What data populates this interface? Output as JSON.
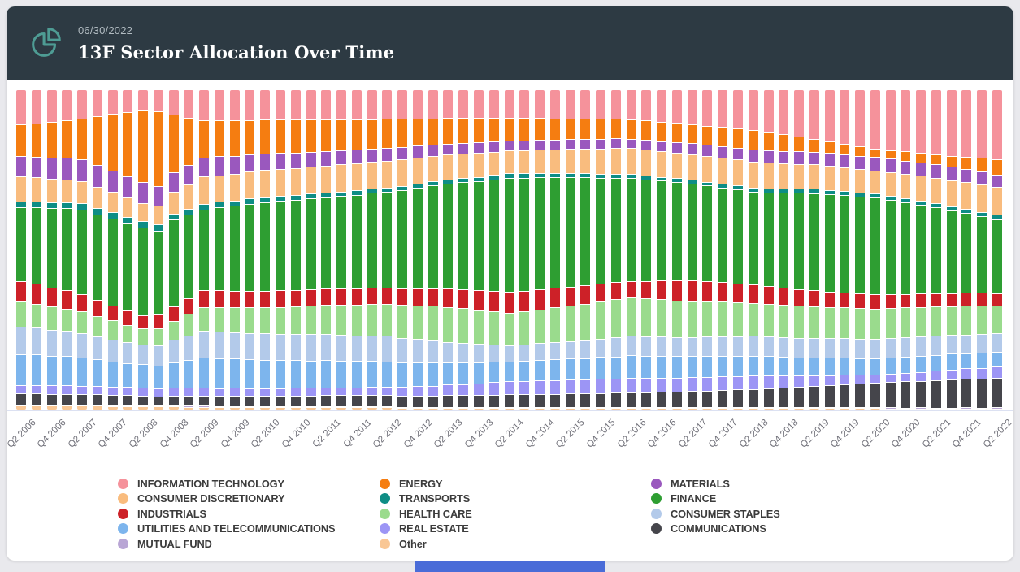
{
  "header": {
    "date": "06/30/2022",
    "title": "13F Sector Allocation Over Time",
    "icon": "pie-chart-icon",
    "bg_color": "#2d3a43",
    "icon_color": "#4e9c94"
  },
  "page": {
    "background": "#e9e9ed",
    "card_background": "#ffffff",
    "baseline_color": "#dce1f2",
    "accent_bar_color": "#4a6cd8"
  },
  "chart_data": {
    "type": "bar",
    "stacked": true,
    "percent": true,
    "grid": false,
    "legend_position": "bottom",
    "ylim": [
      0,
      100
    ],
    "xlabel": "",
    "ylabel": "",
    "title": "13F Sector Allocation Over Time",
    "label_every": 2,
    "categories": [
      "Q2 2006",
      "Q3 2006",
      "Q4 2006",
      "Q1 2007",
      "Q2 2007",
      "Q3 2007",
      "Q4 2007",
      "Q1 2008",
      "Q2 2008",
      "Q3 2008",
      "Q4 2008",
      "Q1 2009",
      "Q2 2009",
      "Q3 2009",
      "Q4 2009",
      "Q1 2010",
      "Q2 2010",
      "Q3 2010",
      "Q4 2010",
      "Q1 2011",
      "Q2 2011",
      "Q3 2011",
      "Q4 2011",
      "Q1 2012",
      "Q2 2012",
      "Q3 2012",
      "Q4 2012",
      "Q1 2013",
      "Q2 2013",
      "Q3 2013",
      "Q4 2013",
      "Q1 2014",
      "Q2 2014",
      "Q3 2014",
      "Q4 2014",
      "Q1 2015",
      "Q2 2015",
      "Q3 2015",
      "Q4 2015",
      "Q1 2016",
      "Q2 2016",
      "Q3 2016",
      "Q4 2016",
      "Q1 2017",
      "Q2 2017",
      "Q3 2017",
      "Q4 2017",
      "Q1 2018",
      "Q2 2018",
      "Q3 2018",
      "Q4 2018",
      "Q1 2019",
      "Q2 2019",
      "Q3 2019",
      "Q4 2019",
      "Q1 2020",
      "Q2 2020",
      "Q3 2020",
      "Q4 2020",
      "Q1 2021",
      "Q2 2021",
      "Q3 2021",
      "Q4 2021",
      "Q1 2022",
      "Q2 2022"
    ],
    "x_tick_labels": [
      "Q2 2006",
      "Q4 2006",
      "Q2 2007",
      "Q4 2007",
      "Q2 2008",
      "Q4 2008",
      "Q2 2009",
      "Q4 2009",
      "Q2 2010",
      "Q4 2010",
      "Q2 2011",
      "Q4 2011",
      "Q2 2012",
      "Q4 2012",
      "Q2 2013",
      "Q4 2013",
      "Q2 2014",
      "Q4 2014",
      "Q2 2015",
      "Q4 2015",
      "Q2 2016",
      "Q4 2016",
      "Q2 2017",
      "Q4 2017",
      "Q2 2018",
      "Q4 2018",
      "Q2 2019",
      "Q4 2019",
      "Q2 2020",
      "Q4 2020",
      "Q2 2021",
      "Q4 2021",
      "Q2 2022"
    ],
    "series": [
      {
        "name": "INFORMATION TECHNOLOGY",
        "key": "information-technology",
        "color": "#f5929b",
        "values": [
          10.7,
          10.1,
          9.5,
          8.9,
          8.4,
          7.8,
          7.2,
          6.6,
          6,
          6.8,
          7.5,
          8.3,
          9,
          9,
          9,
          9,
          9,
          9,
          9,
          9,
          9,
          9,
          9,
          9,
          9,
          8.9,
          8.9,
          8.8,
          8.8,
          8.7,
          8.7,
          8.6,
          8.5,
          8.6,
          8.6,
          8.7,
          8.8,
          8.8,
          8.9,
          8.9,
          9,
          9.4,
          9.8,
          10.1,
          10.5,
          10.9,
          11.3,
          11.6,
          12,
          12.8,
          13.5,
          14.3,
          15,
          15.8,
          16.5,
          17.3,
          18,
          18.4,
          18.8,
          19.1,
          19.5,
          19.9,
          20.3,
          20.6,
          21
        ]
      },
      {
        "name": "ENERGY",
        "key": "energy",
        "color": "#f57d11",
        "values": [
          9.7,
          10.3,
          10.9,
          11.4,
          12,
          14.5,
          17,
          19.5,
          22,
          24,
          18,
          14.5,
          11,
          10.8,
          10.7,
          10.5,
          10.3,
          10.2,
          10,
          9.8,
          9.7,
          9.5,
          9.3,
          9.2,
          9,
          8.8,
          8.5,
          8.3,
          8,
          7.8,
          7.5,
          7.3,
          7,
          6.9,
          6.8,
          6.6,
          6.5,
          6.4,
          6.3,
          6.1,
          6,
          6,
          6,
          6,
          6,
          6,
          6,
          6,
          6,
          5.5,
          5,
          4.5,
          4,
          3.6,
          3.3,
          2.9,
          2.5,
          2.6,
          2.8,
          2.9,
          3,
          3.4,
          3.8,
          4.2,
          4.6
        ]
      },
      {
        "name": "MATERIALS",
        "key": "materials",
        "color": "#9a58be",
        "values": [
          6.4,
          6.4,
          6.4,
          6.4,
          6.5,
          6.5,
          6.5,
          6.5,
          6.5,
          6.3,
          6.1,
          5.9,
          5.8,
          5.6,
          5.4,
          5.2,
          5,
          4.9,
          4.8,
          4.6,
          4.5,
          4.4,
          4.3,
          4.1,
          4,
          3.9,
          3.8,
          3.6,
          3.5,
          3.4,
          3.3,
          3.1,
          3,
          3,
          3,
          3,
          3,
          3,
          3,
          3,
          3,
          3.1,
          3.1,
          3.2,
          3.3,
          3.3,
          3.4,
          3.4,
          3.5,
          3.6,
          3.7,
          3.8,
          3.9,
          4,
          4.1,
          4.2,
          4.3,
          4.2,
          4.2,
          4.1,
          4.1,
          4,
          4,
          3.9,
          3.8
        ]
      },
      {
        "name": "CONSUMER DISCRETIONARY",
        "key": "consumer-discretionary",
        "color": "#f9bc7e",
        "values": [
          7.7,
          7.4,
          7.2,
          6.9,
          6.6,
          6.3,
          6.1,
          5.8,
          5.5,
          6.1,
          6.8,
          7.4,
          8,
          8,
          8.1,
          8.1,
          8.2,
          8.2,
          8.2,
          8.3,
          8.3,
          8.4,
          8.4,
          8.4,
          8.5,
          8.3,
          8.1,
          7.9,
          7.8,
          7.6,
          7.4,
          7.2,
          7,
          7.1,
          7.3,
          7.4,
          7.5,
          7.6,
          7.8,
          7.9,
          8,
          8,
          8,
          8,
          8,
          8,
          8,
          8,
          8,
          7.9,
          7.8,
          7.6,
          7.5,
          7.4,
          7.3,
          7.1,
          7,
          7.2,
          7.4,
          7.6,
          7.8,
          7.9,
          8.1,
          8.3,
          8.5
        ]
      },
      {
        "name": "TRANSPORTS",
        "key": "transports",
        "color": "#0e8d85",
        "values": [
          1.7,
          1.7,
          1.8,
          1.8,
          1.9,
          1.9,
          2,
          2,
          2,
          1.9,
          1.9,
          1.8,
          1.8,
          1.7,
          1.6,
          1.6,
          1.5,
          1.5,
          1.5,
          1.4,
          1.4,
          1.4,
          1.4,
          1.3,
          1.3,
          1.3,
          1.3,
          1.3,
          1.3,
          1.3,
          1.3,
          1.3,
          1.3,
          1.3,
          1.3,
          1.3,
          1.3,
          1.3,
          1.3,
          1.3,
          1.2,
          1.2,
          1.2,
          1.2,
          1.2,
          1.2,
          1.2,
          1.2,
          1.2,
          1.2,
          1.2,
          1.3,
          1.3,
          1.3,
          1.3,
          1.3,
          1.3,
          1.3,
          1.3,
          1.3,
          1.3,
          1.3,
          1.3,
          1.3,
          1.3
        ]
      },
      {
        "name": "FINANCE",
        "key": "finance",
        "color": "#2e9e32",
        "values": [
          23,
          23.5,
          24,
          24.5,
          25,
          25.5,
          26,
          26.5,
          27,
          27,
          27,
          25.5,
          24,
          24.8,
          25.5,
          26.3,
          27,
          27.3,
          27.5,
          27.8,
          28,
          28.5,
          29,
          29.5,
          30,
          30.8,
          31.5,
          32.3,
          33,
          33.5,
          34,
          34.5,
          35,
          34.8,
          34.5,
          34.3,
          34,
          33.5,
          33,
          32.5,
          32,
          31.5,
          31,
          30.5,
          30,
          29.5,
          29,
          28.5,
          28,
          28.5,
          29,
          29.5,
          30,
          30,
          30,
          30,
          30,
          29,
          28,
          27,
          26,
          25.1,
          24.3,
          23.4,
          22.5
        ]
      },
      {
        "name": "INDUSTRIALS",
        "key": "industrials",
        "color": "#cd2128",
        "values": [
          6.4,
          6.1,
          5.8,
          5.5,
          5.2,
          4.9,
          4.6,
          4.3,
          4,
          4.3,
          4.5,
          4.8,
          5,
          5,
          5,
          5,
          5,
          5,
          5,
          5,
          5,
          5,
          5,
          5,
          5,
          5.2,
          5.4,
          5.5,
          5.7,
          5.9,
          6.1,
          6.2,
          6.4,
          6.3,
          6.2,
          6.1,
          6,
          5.8,
          5.5,
          5.3,
          5,
          5.4,
          5.8,
          6.1,
          6.5,
          6.3,
          6,
          5.8,
          5.5,
          5.4,
          5.2,
          5.1,
          4.9,
          4.8,
          4.6,
          4.5,
          4.3,
          4.2,
          4.2,
          4.1,
          4.1,
          4,
          4,
          3.9,
          3.8
        ]
      },
      {
        "name": "HEALTH CARE",
        "key": "health-care",
        "color": "#9adb8d",
        "values": [
          7.7,
          7.4,
          7,
          6.7,
          6.4,
          6,
          5.7,
          5.3,
          5,
          5.5,
          6,
          6.5,
          7,
          7.3,
          7.5,
          7.8,
          8,
          8.3,
          8.5,
          8.8,
          9,
          9.3,
          9.5,
          9.8,
          10,
          10.3,
          10.5,
          10.8,
          11,
          10.8,
          10.5,
          10.3,
          10,
          10.3,
          10.5,
          10.8,
          11,
          11.3,
          11.5,
          11.8,
          12,
          11.8,
          11.5,
          11.3,
          11,
          10.8,
          10.5,
          10.3,
          10,
          9.9,
          9.9,
          9.8,
          9.7,
          9.6,
          9.6,
          9.5,
          9.4,
          9.3,
          9.2,
          9.1,
          8.9,
          8.8,
          8.7,
          8.6,
          8.5
        ]
      },
      {
        "name": "CONSUMER STAPLES",
        "key": "consumer-staples",
        "color": "#b3caea",
        "values": [
          8.5,
          8.2,
          7.9,
          7.6,
          7.3,
          6.9,
          6.6,
          6.3,
          6,
          6.5,
          7,
          7.5,
          8,
          8,
          8,
          8,
          8,
          8,
          8,
          8,
          8,
          8,
          8,
          8,
          8,
          7.6,
          7.3,
          6.9,
          6.5,
          6.1,
          5.8,
          5.4,
          5,
          5.1,
          5.3,
          5.4,
          5.5,
          5.6,
          5.8,
          5.9,
          6,
          6,
          6,
          6,
          6,
          6,
          6,
          6,
          6,
          6,
          6,
          6,
          6,
          6,
          6,
          6,
          6,
          5.9,
          5.9,
          5.8,
          5.8,
          5.7,
          5.7,
          5.6,
          5.5
        ]
      },
      {
        "name": "UTILITIES AND TELECOMMUNICATIONS",
        "key": "utilities-telecom",
        "color": "#7db5ed",
        "values": [
          9.7,
          9.4,
          9,
          8.7,
          8.4,
          8,
          7.7,
          7.3,
          7,
          7.5,
          8,
          8.5,
          9,
          8.9,
          8.8,
          8.8,
          8.7,
          8.6,
          8.5,
          8.4,
          8.3,
          8.3,
          8.2,
          8.1,
          8,
          7.8,
          7.5,
          7.3,
          7,
          6.8,
          6.5,
          6.3,
          6,
          6.1,
          6.3,
          6.4,
          6.5,
          6.6,
          6.8,
          6.9,
          7,
          6.9,
          6.8,
          6.6,
          6.5,
          6.4,
          6.3,
          6.1,
          6,
          5.9,
          5.8,
          5.6,
          5.5,
          5.4,
          5.3,
          5.1,
          5,
          5,
          4.9,
          4.9,
          4.8,
          4.8,
          4.7,
          4.7,
          4.6
        ]
      },
      {
        "name": "REAL ESTATE",
        "key": "real-estate",
        "color": "#9c95f5",
        "values": [
          2.6,
          2.6,
          2.6,
          2.6,
          2.5,
          2.5,
          2.5,
          2.5,
          2.5,
          2.5,
          2.4,
          2.4,
          2.4,
          2.3,
          2.3,
          2.2,
          2.2,
          2.2,
          2.3,
          2.3,
          2.4,
          2.4,
          2.4,
          2.5,
          2.5,
          2.7,
          2.9,
          3.1,
          3.3,
          3.4,
          3.6,
          3.8,
          4,
          4.1,
          4.1,
          4.2,
          4.3,
          4.3,
          4.4,
          4.4,
          4.5,
          4.4,
          4.4,
          4.3,
          4.3,
          4.2,
          4.2,
          4.1,
          4,
          3.8,
          3.6,
          3.4,
          3.3,
          3.1,
          2.9,
          2.7,
          2.5,
          2.6,
          2.7,
          2.8,
          2.9,
          3,
          3.2,
          3.3,
          3.4
        ]
      },
      {
        "name": "COMMUNICATIONS",
        "key": "communications",
        "color": "#45454b",
        "values": [
          3.3,
          3.3,
          3.2,
          3.2,
          3.1,
          3.1,
          3,
          3,
          3,
          3,
          3.1,
          3.1,
          3.1,
          3.1,
          3.2,
          3.2,
          3.2,
          3.2,
          3.3,
          3.3,
          3.4,
          3.4,
          3.4,
          3.5,
          3.5,
          3.5,
          3.6,
          3.6,
          3.7,
          3.7,
          3.7,
          3.8,
          3.8,
          3.9,
          4,
          4.1,
          4.2,
          4.2,
          4.3,
          4.4,
          4.5,
          4.6,
          4.8,
          4.9,
          5,
          5.1,
          5.3,
          5.4,
          5.5,
          5.8,
          6,
          6.3,
          6.6,
          6.8,
          7.1,
          7.3,
          7.6,
          7.8,
          8,
          8.1,
          8.3,
          8.5,
          8.7,
          8.8,
          9
        ]
      },
      {
        "name": "MUTUAL FUND",
        "key": "mutual-fund",
        "color": "#b9a6d5",
        "values": [
          0.3,
          0.3,
          0.3,
          0.3,
          0.3,
          0.3,
          0.3,
          0.3,
          0.3,
          0.3,
          0.3,
          0.3,
          0.3,
          0.3,
          0.3,
          0.3,
          0.3,
          0.3,
          0.3,
          0.3,
          0.3,
          0.3,
          0.3,
          0.3,
          0.3,
          0.3,
          0.3,
          0.3,
          0.3,
          0.3,
          0.3,
          0.3,
          0.3,
          0.3,
          0.3,
          0.3,
          0.3,
          0.3,
          0.3,
          0.3,
          0.3,
          0.3,
          0.3,
          0.3,
          0.3,
          0.3,
          0.3,
          0.3,
          0.3,
          0.3,
          0.3,
          0.3,
          0.3,
          0.3,
          0.3,
          0.3,
          0.3,
          0.3,
          0.3,
          0.3,
          0.3,
          0.3,
          0.3,
          0.3,
          0.3
        ]
      },
      {
        "name": "Other",
        "key": "other",
        "color": "#f9c795",
        "values": [
          1.3,
          1.3,
          1.2,
          1.2,
          1.1,
          1.1,
          1,
          1,
          1,
          0.9,
          0.9,
          0.8,
          0.8,
          0.7,
          0.7,
          0.7,
          0.7,
          0.7,
          0.7,
          0.7,
          0.7,
          0.7,
          0.7,
          0.7,
          0.7,
          0.5,
          0.5,
          0.5,
          0.5,
          0.5,
          0.5,
          0.5,
          0.5,
          0.5,
          0.5,
          0.5,
          0.5,
          0.5,
          0.5,
          0.5,
          0.5,
          0.4,
          0.4,
          0.4,
          0.4,
          0.4,
          0.4,
          0.4,
          0.4,
          0.4,
          0.4,
          0.4,
          0.4,
          0.4,
          0.4,
          0.4,
          0.4,
          0.3,
          0.3,
          0.3,
          0.3,
          0.3,
          0.3,
          0.3,
          0.3
        ]
      }
    ],
    "legend_column_order": [
      "INFORMATION TECHNOLOGY",
      "CONSUMER DISCRETIONARY",
      "INDUSTRIALS",
      "UTILITIES AND TELECOMMUNICATIONS",
      "MUTUAL FUND",
      "ENERGY",
      "TRANSPORTS",
      "HEALTH CARE",
      "REAL ESTATE",
      "Other",
      "MATERIALS",
      "FINANCE",
      "CONSUMER STAPLES",
      "COMMUNICATIONS"
    ]
  }
}
